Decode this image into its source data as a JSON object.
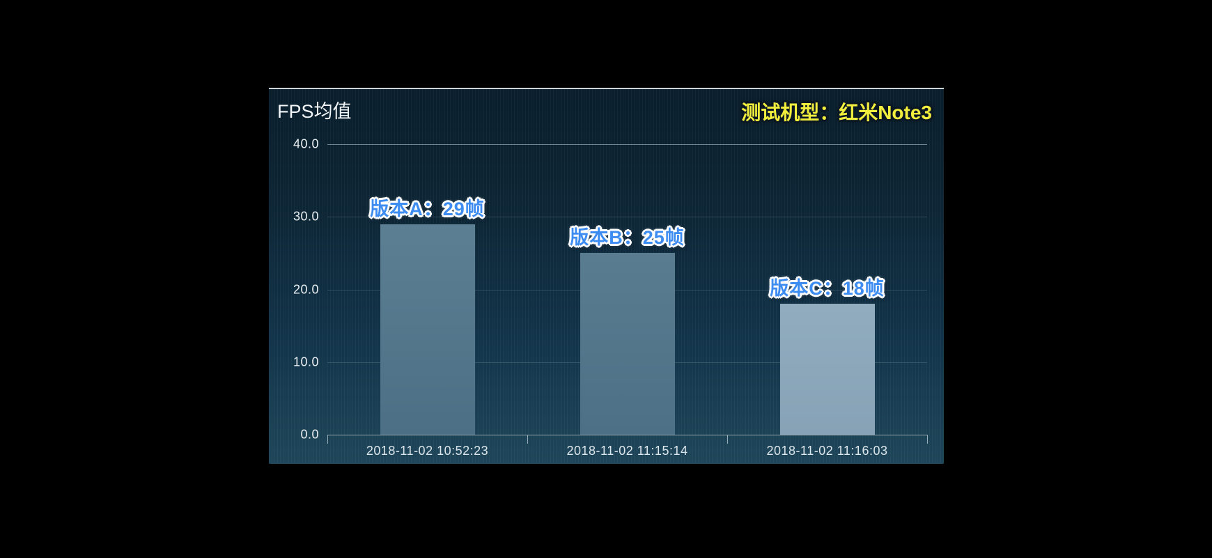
{
  "page": {
    "background": "#000000"
  },
  "chart_data": {
    "type": "bar",
    "title": "FPS均值",
    "annotation": "测试机型：红米Note3",
    "annotation_color": "#f1ee3e",
    "categories": [
      "2018-11-02 10:52:23",
      "2018-11-02 11:15:14",
      "2018-11-02 11:16:03"
    ],
    "series": [
      {
        "name": "FPS均值",
        "values": [
          29,
          25,
          18
        ]
      }
    ],
    "values": [
      29,
      25,
      18
    ],
    "bar_labels": [
      "版本A：29帧",
      "版本B：25帧",
      "版本C：18帧"
    ],
    "bar_label_color": "#3d8cf2",
    "bar_colors": [
      [
        "#5d7f93",
        "#4d6f85"
      ],
      [
        "#5a7c90",
        "#4d7086"
      ],
      [
        "#91acbf",
        "#87a2b6"
      ]
    ],
    "ylim": [
      0,
      40
    ],
    "yticks": [
      0,
      10,
      20,
      30,
      40
    ],
    "ytick_labels": [
      "0.0",
      "10.0",
      "20.0",
      "30.0",
      "40.0"
    ],
    "grid": true,
    "legend": false,
    "background_top": "#0a1e2c",
    "background_bottom": "#1e4559"
  }
}
